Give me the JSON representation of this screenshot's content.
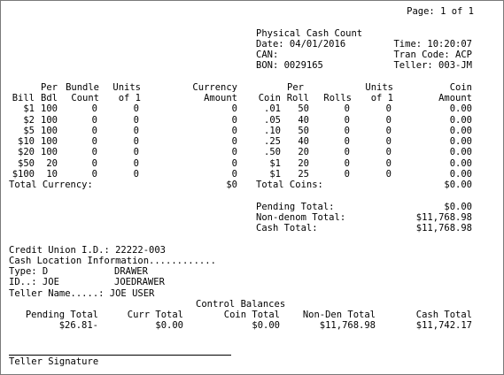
{
  "report": {
    "page": "Page: 1 of 1",
    "title": "Physical Cash Count",
    "date": "Date: 04/01/2016",
    "time": "Time: 10:20:07",
    "can": "CAN:",
    "tran_code": "Tran Code: ACP",
    "bon": "BON: 0029165",
    "teller": "Teller: 003-JM"
  },
  "currency": {
    "headers": {
      "per": "Per",
      "bundle": "Bundle",
      "units": "Units",
      "currency": "Currency",
      "bill": "Bill",
      "bdl": "Bdl",
      "count": "Count",
      "of1": "of 1",
      "amount": "Amount"
    },
    "rows": [
      {
        "bill": "$1",
        "bdl": "100",
        "count": "0",
        "units": "0",
        "amount": "0"
      },
      {
        "bill": "$2",
        "bdl": "100",
        "count": "0",
        "units": "0",
        "amount": "0"
      },
      {
        "bill": "$5",
        "bdl": "100",
        "count": "0",
        "units": "0",
        "amount": "0"
      },
      {
        "bill": "$10",
        "bdl": "100",
        "count": "0",
        "units": "0",
        "amount": "0"
      },
      {
        "bill": "$20",
        "bdl": "100",
        "count": "0",
        "units": "0",
        "amount": "0"
      },
      {
        "bill": "$50",
        "bdl": "20",
        "count": "0",
        "units": "0",
        "amount": "0"
      },
      {
        "bill": "$100",
        "bdl": "10",
        "count": "0",
        "units": "0",
        "amount": "0"
      }
    ],
    "total_label": "Total Currency:",
    "total_value": "$0"
  },
  "coins": {
    "headers": {
      "per": "Per",
      "units": "Units",
      "coin": "Coin",
      "coin_col": "Coin",
      "roll": "Roll",
      "rolls": "Rolls",
      "of1": "of 1",
      "amount": "Amount"
    },
    "rows": [
      {
        "coin": ".01",
        "roll": "50",
        "rolls": "0",
        "units": "0",
        "amount": "0.00"
      },
      {
        "coin": ".05",
        "roll": "40",
        "rolls": "0",
        "units": "0",
        "amount": "0.00"
      },
      {
        "coin": ".10",
        "roll": "50",
        "rolls": "0",
        "units": "0",
        "amount": "0.00"
      },
      {
        "coin": ".25",
        "roll": "40",
        "rolls": "0",
        "units": "0",
        "amount": "0.00"
      },
      {
        "coin": ".50",
        "roll": "20",
        "rolls": "0",
        "units": "0",
        "amount": "0.00"
      },
      {
        "coin": "$1",
        "roll": "20",
        "rolls": "0",
        "units": "0",
        "amount": "0.00"
      },
      {
        "coin": "$1",
        "roll": "25",
        "rolls": "0",
        "units": "0",
        "amount": "0.00"
      }
    ],
    "total_label": "Total Coins:",
    "total_value": "$0.00"
  },
  "totals": {
    "pending_label": "Pending Total:",
    "pending_value": "$0.00",
    "nondenom_label": "Non-denom Total:",
    "nondenom_value": "$11,768.98",
    "cash_label": "Cash Total:",
    "cash_value": "$11,768.98"
  },
  "info": {
    "credit_union": "Credit Union I.D.: 22222-003",
    "cash_location": "Cash Location Information............",
    "type_label": "Type: D",
    "type_value": "DRAWER",
    "id_label": "ID..: JOE",
    "id_value": "JOEDRAWER",
    "teller_name": "Teller Name.....: JOE USER"
  },
  "control": {
    "title": "Control Balances",
    "headers": [
      "Pending Total",
      "Curr Total",
      "Coin Total",
      "Non-Den Total",
      "Cash Total"
    ],
    "values": [
      "$26.81-",
      "$0.00",
      "$0.00",
      "$11,768.98",
      "$11,742.17"
    ]
  },
  "signature": {
    "label": "Teller Signature"
  }
}
